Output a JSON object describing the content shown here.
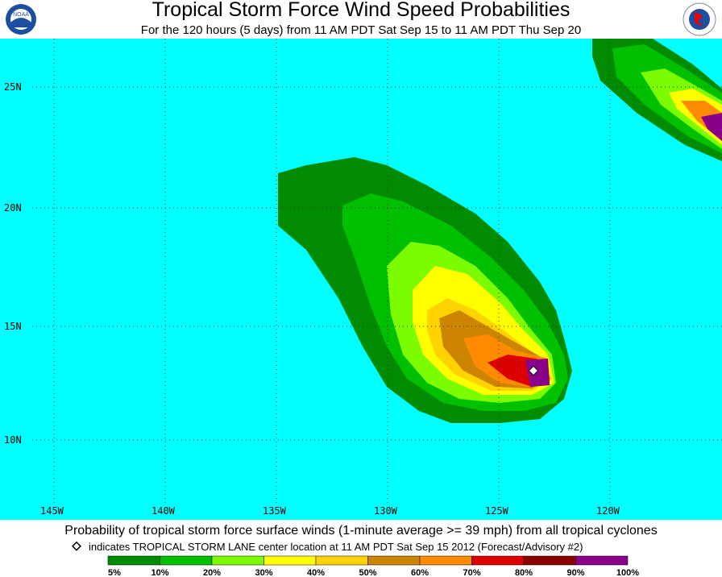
{
  "header": {
    "title": "Tropical Storm Force Wind Speed Probabilities",
    "subtitle": "For the 120 hours (5 days) from 11 AM PDT Sat Sep 15 to 11 AM PDT Thu Sep 20",
    "left_logo": "NOAA"
  },
  "map": {
    "lat_labels": [
      "25N",
      "20N",
      "15N",
      "10N"
    ],
    "lon_labels": [
      "145W",
      "140W",
      "135W",
      "130W",
      "125W",
      "120W"
    ]
  },
  "footer": {
    "caption": "Probability of tropical storm force surface winds (1-minute average >= 39 mph) from all tropical cyclones",
    "note": "indicates TROPICAL STORM LANE center location at 11 AM PDT Sat Sep 15 2012 (Forecast/Advisory #2)"
  },
  "legend": {
    "colors": [
      "#008b00",
      "#00c000",
      "#7cfc00",
      "#ffff00",
      "#ffd200",
      "#cd8500",
      "#ff8c00",
      "#dd0000",
      "#8b0000",
      "#8b008b"
    ],
    "labels": [
      "5%",
      "10%",
      "20%",
      "30%",
      "40%",
      "50%",
      "60%",
      "70%",
      "80%",
      "90%",
      "100%"
    ]
  }
}
